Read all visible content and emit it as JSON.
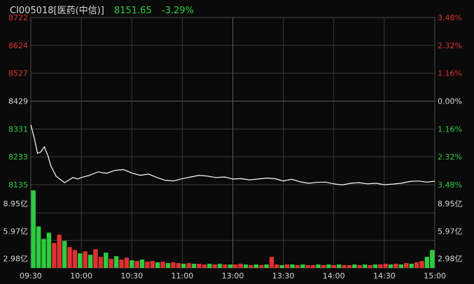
{
  "header": {
    "code_name": "CI005018[医药(中信)]",
    "price": "8151.65",
    "change_pct": "-3.29%"
  },
  "colors": {
    "up": "#e03030",
    "down": "#2ecc40",
    "neutral": "#d8d8d8",
    "line": "#ffffff",
    "grid": "#3a3a3a"
  },
  "chart_data": {
    "type": "line",
    "title": "",
    "price_axis": {
      "left_labels": [
        "8722",
        "8624",
        "8527",
        "8429",
        "8331",
        "8233",
        "8135"
      ],
      "right_labels": [
        "3.48%",
        "2.32%",
        "1.16%",
        "0.00%",
        "1.16%",
        "2.32%",
        "3.48%"
      ],
      "ylim": [
        8135,
        8722
      ],
      "prev_close": 8429
    },
    "volume_axis": {
      "labels": [
        "8.95亿",
        "5.97亿",
        "2.98亿"
      ],
      "ylim": [
        0,
        11.93
      ]
    },
    "time_labels": [
      "09:30",
      "10:00",
      "10:30",
      "11:00",
      "13:00",
      "13:30",
      "14:00",
      "14:30",
      "15:00"
    ],
    "series": [
      {
        "x": [
          0,
          2,
          4,
          6,
          8,
          10,
          12,
          15,
          20,
          25,
          28,
          30,
          35,
          40,
          45,
          50,
          55,
          60,
          65,
          70,
          75,
          80,
          85,
          90,
          95,
          100,
          105,
          110,
          115,
          120,
          125,
          130,
          135,
          140,
          145,
          150,
          155,
          160,
          165,
          170,
          175,
          180,
          185,
          190,
          195,
          200,
          205,
          210,
          215,
          220,
          225,
          230,
          235,
          240
        ],
        "values": [
          8345,
          8300,
          8245,
          8250,
          8268,
          8240,
          8200,
          8165,
          8142,
          8160,
          8155,
          8160,
          8168,
          8180,
          8175,
          8185,
          8188,
          8176,
          8168,
          8172,
          8160,
          8150,
          8148,
          8156,
          8162,
          8168,
          8165,
          8160,
          8162,
          8155,
          8156,
          8152,
          8155,
          8158,
          8156,
          8148,
          8154,
          8145,
          8140,
          8143,
          8144,
          8138,
          8134,
          8140,
          8142,
          8138,
          8140,
          8135,
          8137,
          8140,
          8146,
          8148,
          8144,
          8147
        ]
      }
    ],
    "volume": {
      "unit": "亿",
      "values": [
        11.2,
        6.0,
        4.2,
        5.1,
        3.6,
        4.8,
        3.9,
        3.0,
        2.6,
        2.1,
        2.4,
        1.9,
        2.7,
        1.6,
        2.2,
        1.3,
        1.7,
        1.2,
        1.5,
        1.1,
        1.0,
        1.2,
        0.9,
        1.0,
        0.8,
        0.9,
        0.7,
        0.8,
        0.7,
        0.6,
        0.7,
        0.6,
        0.6,
        0.5,
        0.6,
        0.5,
        0.6,
        0.5,
        0.5,
        0.5,
        0.6,
        0.5,
        0.4,
        0.5,
        0.4,
        0.5,
        1.6,
        0.5,
        0.4,
        0.5,
        0.5,
        0.4,
        0.5,
        0.4,
        0.4,
        0.5,
        0.4,
        0.5,
        0.4,
        0.5,
        0.4,
        0.4,
        0.5,
        0.4,
        0.5,
        0.4,
        0.5,
        0.5,
        0.6,
        0.5,
        0.6,
        0.5,
        0.7,
        0.6,
        0.8,
        1.0,
        1.6,
        2.6
      ],
      "up_flags": [
        0,
        0,
        0,
        0,
        1,
        1,
        0,
        1,
        1,
        0,
        1,
        0,
        1,
        1,
        0,
        1,
        0,
        1,
        1,
        0,
        1,
        0,
        1,
        1,
        0,
        1,
        0,
        1,
        1,
        0,
        1,
        0,
        1,
        1,
        0,
        1,
        0,
        1,
        0,
        1,
        1,
        0,
        1,
        0,
        1,
        0,
        1,
        1,
        0,
        1,
        0,
        1,
        0,
        1,
        1,
        0,
        1,
        0,
        1,
        0,
        1,
        1,
        0,
        1,
        0,
        1,
        0,
        1,
        1,
        0,
        1,
        0,
        1,
        0,
        1,
        1,
        0,
        0
      ]
    }
  }
}
